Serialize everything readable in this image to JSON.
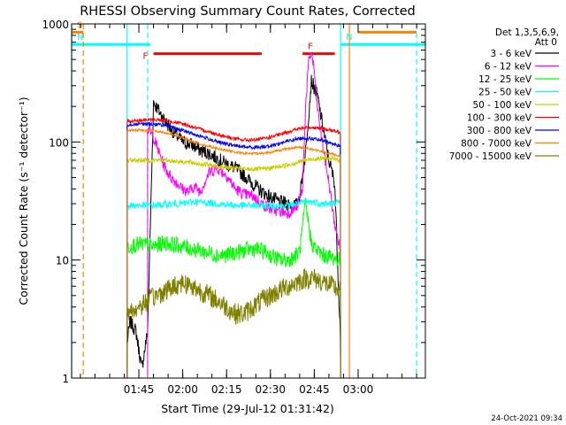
{
  "footer": {
    "timestamp": "24-Oct-2021 09:34"
  },
  "chart_data": {
    "type": "line",
    "title": "RHESSI Observing Summary Count Rates, Corrected",
    "xlabel": "Start Time (29-Jul-12 01:31:42)",
    "ylabel": "Corrected Count Rate (s⁻¹ detector⁻¹)",
    "yscale": "log",
    "ylim": [
      1,
      1000
    ],
    "xlim": [
      1.3667,
      3.3833
    ],
    "x_unit": "hours UT",
    "yticks": [
      {
        "value": 1,
        "label": "1"
      },
      {
        "value": 10,
        "label": "10"
      },
      {
        "value": 100,
        "label": "100"
      },
      {
        "value": 1000,
        "label": "1000"
      }
    ],
    "xticks": [
      {
        "value": 1.75,
        "label": "01:45"
      },
      {
        "value": 2.0,
        "label": "02:00"
      },
      {
        "value": 2.25,
        "label": "02:15"
      },
      {
        "value": 2.5,
        "label": "02:30"
      },
      {
        "value": 2.75,
        "label": "02:45"
      },
      {
        "value": 3.0,
        "label": "03:00"
      }
    ],
    "legend": {
      "position": "right",
      "header1": "Det 1,3,5,6,9,",
      "header2": "Att 0",
      "entries": [
        {
          "label": "3 - 6 keV",
          "color": "#000000"
        },
        {
          "label": "6 - 12 keV",
          "color": "#ff00ff"
        },
        {
          "label": "12 - 25 keV",
          "color": "#00ff00"
        },
        {
          "label": "25 - 50 keV",
          "color": "#00ffff"
        },
        {
          "label": "50 - 100 keV",
          "color": "#cccc00"
        },
        {
          "label": "100 - 300 keV",
          "color": "#ff0000"
        },
        {
          "label": "300 - 800 keV",
          "color": "#0000ff"
        },
        {
          "label": "800 - 7000 keV",
          "color": "#ff8000"
        },
        {
          "label": "7000 - 15000 keV",
          "color": "#808000"
        }
      ]
    },
    "flags": [
      {
        "label": "S",
        "color": "#ff8000",
        "x": [
          1.3667,
          1.4333
        ],
        "y": 850
      },
      {
        "label": "N",
        "color": "#00ffff",
        "x": [
          1.3667,
          1.8167
        ],
        "y": 670
      },
      {
        "label": "N",
        "color": "#00ffff",
        "x": [
          2.9,
          3.3833
        ],
        "y": 670
      },
      {
        "label": "F",
        "color": "#ff0000",
        "x": [
          1.8333,
          2.45
        ],
        "y": 560
      },
      {
        "label": "F",
        "color": "#ff0000",
        "x": [
          2.6833,
          2.8667
        ],
        "y": 560
      },
      {
        "label": "",
        "color": "#ff8000",
        "x": [
          3.0,
          3.3333
        ],
        "y": 850
      }
    ],
    "markers": [
      {
        "x": 1.4333,
        "color": "#ff8000",
        "style": "dashed"
      },
      {
        "x": 1.8,
        "color": "#00ffff",
        "style": "dashed"
      },
      {
        "x": 3.3333,
        "color": "#00ffff",
        "style": "dashed"
      },
      {
        "x": 1.3667,
        "color": "#00ffff",
        "style": "solid"
      },
      {
        "x": 1.6833,
        "color": "#00ffff",
        "style": "solid"
      },
      {
        "x": 2.9,
        "color": "#00ffff",
        "style": "solid"
      },
      {
        "x": 2.95,
        "color": "#ff8000",
        "style": "solid"
      }
    ],
    "data_window": [
      1.6833,
      2.9
    ],
    "series": [
      {
        "name": "3 - 6 keV",
        "color": "#000000",
        "x": [
          1.6833,
          1.7,
          1.7333,
          1.7667,
          1.8,
          1.8333,
          1.8667,
          1.9,
          1.95,
          2.0,
          2.05,
          2.1,
          2.15,
          2.2,
          2.25,
          2.3,
          2.35,
          2.4,
          2.45,
          2.5,
          2.55,
          2.6,
          2.65,
          2.6667,
          2.7,
          2.7333,
          2.7667,
          2.8,
          2.8333,
          2.8667,
          2.9
        ],
        "y": [
          2,
          3,
          2.5,
          1.2,
          2.5,
          220,
          180,
          150,
          120,
          100,
          95,
          85,
          80,
          72,
          65,
          60,
          52,
          44,
          38,
          34,
          31,
          30,
          29,
          35,
          80,
          330,
          250,
          130,
          70,
          45,
          2
        ]
      },
      {
        "name": "6 - 12 keV",
        "color": "#ff00ff",
        "x": [
          1.8,
          1.8333,
          1.8667,
          1.9,
          1.9333,
          1.9667,
          2.0,
          2.0333,
          2.0667,
          2.1,
          2.15,
          2.2,
          2.25,
          2.3,
          2.35,
          2.4,
          2.45,
          2.5,
          2.55,
          2.6,
          2.65,
          2.6833,
          2.7,
          2.7167,
          2.7333,
          2.75,
          2.7667,
          2.8,
          2.8333,
          2.8667,
          2.9
        ],
        "y": [
          130,
          110,
          80,
          60,
          50,
          45,
          40,
          38,
          42,
          38,
          55,
          60,
          52,
          40,
          36,
          35,
          30,
          27,
          26,
          25,
          28,
          40,
          200,
          450,
          580,
          400,
          200,
          90,
          45,
          20,
          12
        ]
      },
      {
        "name": "12 - 25 keV",
        "color": "#00ff00",
        "x": [
          1.6833,
          1.7333,
          1.7833,
          1.8333,
          1.9,
          1.95,
          2.0,
          2.05,
          2.1,
          2.15,
          2.2,
          2.25,
          2.3,
          2.35,
          2.4,
          2.45,
          2.5,
          2.55,
          2.6,
          2.65,
          2.6667,
          2.7,
          2.7333,
          2.7667,
          2.8,
          2.85,
          2.9
        ],
        "y": [
          13,
          13.5,
          13.5,
          13,
          14,
          13.5,
          13,
          12.5,
          12,
          11.5,
          11,
          11,
          11.5,
          12,
          12.5,
          12,
          11,
          10,
          10,
          11,
          12,
          30,
          14,
          12,
          11,
          10.5,
          10
        ]
      },
      {
        "name": "25 - 50 keV",
        "color": "#00ffff",
        "x": [
          1.6833,
          1.75,
          1.8333,
          1.9,
          1.95,
          2.0,
          2.05,
          2.1,
          2.15,
          2.2,
          2.25,
          2.3,
          2.35,
          2.4,
          2.45,
          2.5,
          2.55,
          2.6,
          2.65,
          2.7,
          2.75,
          2.8,
          2.85,
          2.9
        ],
        "y": [
          29,
          29,
          29,
          29.5,
          30,
          30,
          31,
          31,
          30.5,
          30,
          29.5,
          29,
          29,
          29,
          29,
          28.5,
          29,
          29,
          30,
          31,
          31,
          30,
          30,
          31
        ]
      },
      {
        "name": "50 - 100 keV",
        "color": "#cccc00",
        "x": [
          1.6833,
          1.75,
          1.8333,
          1.9,
          1.95,
          2.0,
          2.05,
          2.1,
          2.15,
          2.2,
          2.25,
          2.3,
          2.35,
          2.4,
          2.45,
          2.5,
          2.55,
          2.6,
          2.65,
          2.7,
          2.75,
          2.8,
          2.85,
          2.9
        ],
        "y": [
          70,
          70,
          70,
          70,
          69,
          68,
          67,
          65,
          64,
          62,
          61,
          60,
          59,
          59,
          59,
          60,
          62,
          64,
          67,
          70,
          72,
          73,
          72,
          70
        ]
      },
      {
        "name": "100 - 300 keV",
        "color": "#ff0000",
        "x": [
          1.6833,
          1.75,
          1.8333,
          1.9,
          1.95,
          2.0,
          2.05,
          2.1,
          2.15,
          2.2,
          2.25,
          2.3,
          2.35,
          2.4,
          2.45,
          2.5,
          2.55,
          2.6,
          2.65,
          2.7,
          2.75,
          2.8,
          2.85,
          2.9
        ],
        "y": [
          150,
          152,
          155,
          152,
          148,
          142,
          135,
          128,
          122,
          116,
          111,
          106,
          104,
          104,
          106,
          110,
          115,
          122,
          128,
          132,
          133,
          130,
          125,
          120
        ]
      },
      {
        "name": "300 - 800 keV",
        "color": "#0000ff",
        "x": [
          1.6833,
          1.75,
          1.8333,
          1.9,
          1.95,
          2.0,
          2.05,
          2.1,
          2.15,
          2.2,
          2.25,
          2.3,
          2.35,
          2.4,
          2.45,
          2.5,
          2.55,
          2.6,
          2.65,
          2.7,
          2.75,
          2.8,
          2.85,
          2.9
        ],
        "y": [
          140,
          142,
          142,
          138,
          132,
          125,
          118,
          112,
          106,
          100,
          96,
          93,
          91,
          90,
          91,
          93,
          97,
          102,
          106,
          108,
          106,
          102,
          97,
          92
        ]
      },
      {
        "name": "800 - 7000 keV",
        "color": "#ff8000",
        "x": [
          1.6833,
          1.75,
          1.8333,
          1.9,
          1.95,
          2.0,
          2.05,
          2.1,
          2.15,
          2.2,
          2.25,
          2.3,
          2.35,
          2.4,
          2.45,
          2.5,
          2.55,
          2.6,
          2.65,
          2.7,
          2.75,
          2.8,
          2.85,
          2.9
        ],
        "y": [
          125,
          126,
          125,
          120,
          115,
          108,
          102,
          96,
          92,
          88,
          85,
          82,
          80,
          80,
          80,
          82,
          85,
          88,
          90,
          89,
          86,
          82,
          79,
          76
        ]
      },
      {
        "name": "7000 - 15000 keV",
        "color": "#808000",
        "x": [
          1.6833,
          1.75,
          1.8,
          1.85,
          1.9,
          1.95,
          2.0,
          2.05,
          2.1,
          2.15,
          2.2,
          2.25,
          2.3,
          2.35,
          2.4,
          2.45,
          2.5,
          2.55,
          2.6,
          2.65,
          2.7,
          2.75,
          2.8,
          2.85,
          2.9
        ],
        "y": [
          3.5,
          4,
          4.5,
          5,
          5.5,
          6,
          6.5,
          6,
          5.5,
          5,
          4.5,
          4,
          3.5,
          3.5,
          4,
          4.5,
          5,
          5.5,
          6,
          6.5,
          7,
          7,
          6.5,
          6,
          5.5
        ]
      }
    ]
  }
}
